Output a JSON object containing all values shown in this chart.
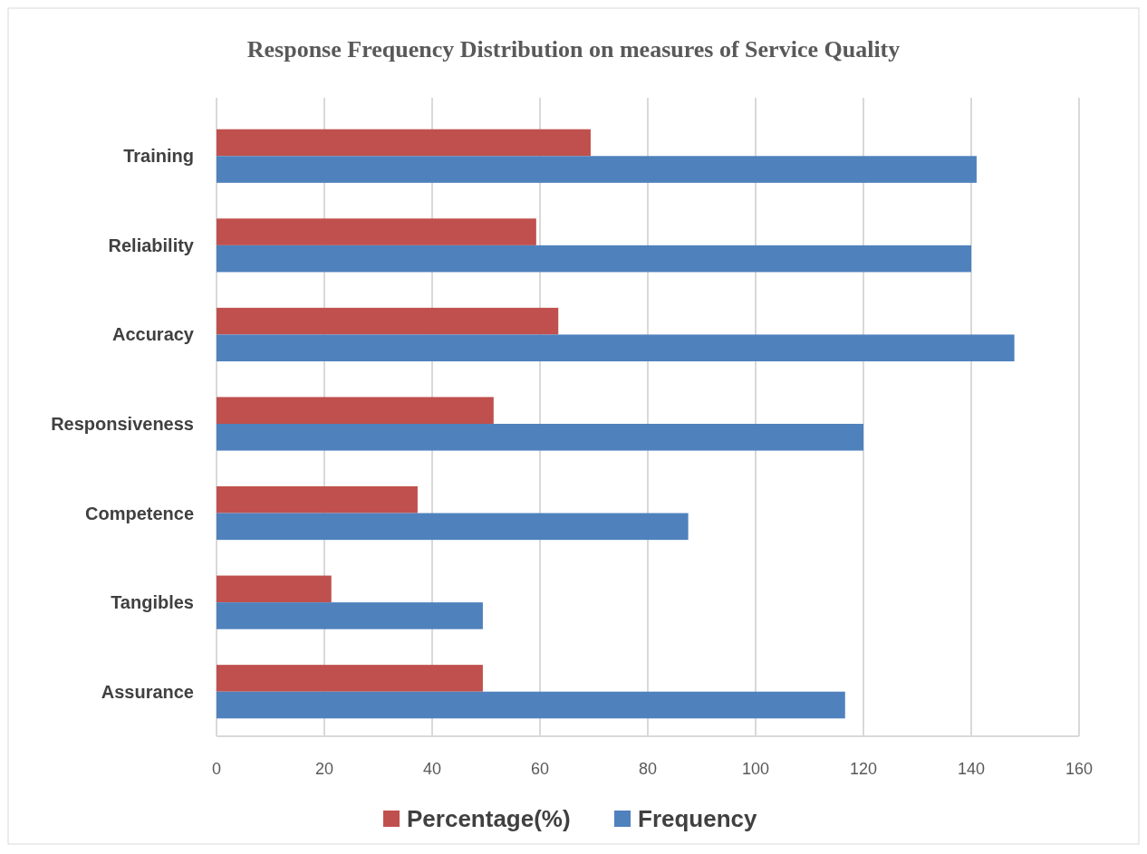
{
  "chart_data": {
    "type": "bar",
    "orientation": "horizontal",
    "title": "Response Frequency Distribution on measures of Service Quality",
    "categories": [
      "Training",
      "Reliability",
      "Accuracy",
      "Responsiveness",
      "Competence",
      "Tangibles",
      "Assurance"
    ],
    "series": [
      {
        "name": "Percentage(%)",
        "color": "#c0504d",
        "values": [
          69.4,
          59.3,
          63.4,
          51.4,
          37.3,
          21.3,
          49.4
        ]
      },
      {
        "name": "Frequency",
        "color": "#4f81bd",
        "values": [
          141,
          140,
          148,
          120,
          87.5,
          49.4,
          116.6
        ]
      }
    ],
    "xlim": [
      0,
      160
    ],
    "xticks": [
      0,
      20,
      40,
      60,
      80,
      100,
      120,
      140,
      160
    ],
    "grid": "x",
    "legend": "bottom"
  }
}
